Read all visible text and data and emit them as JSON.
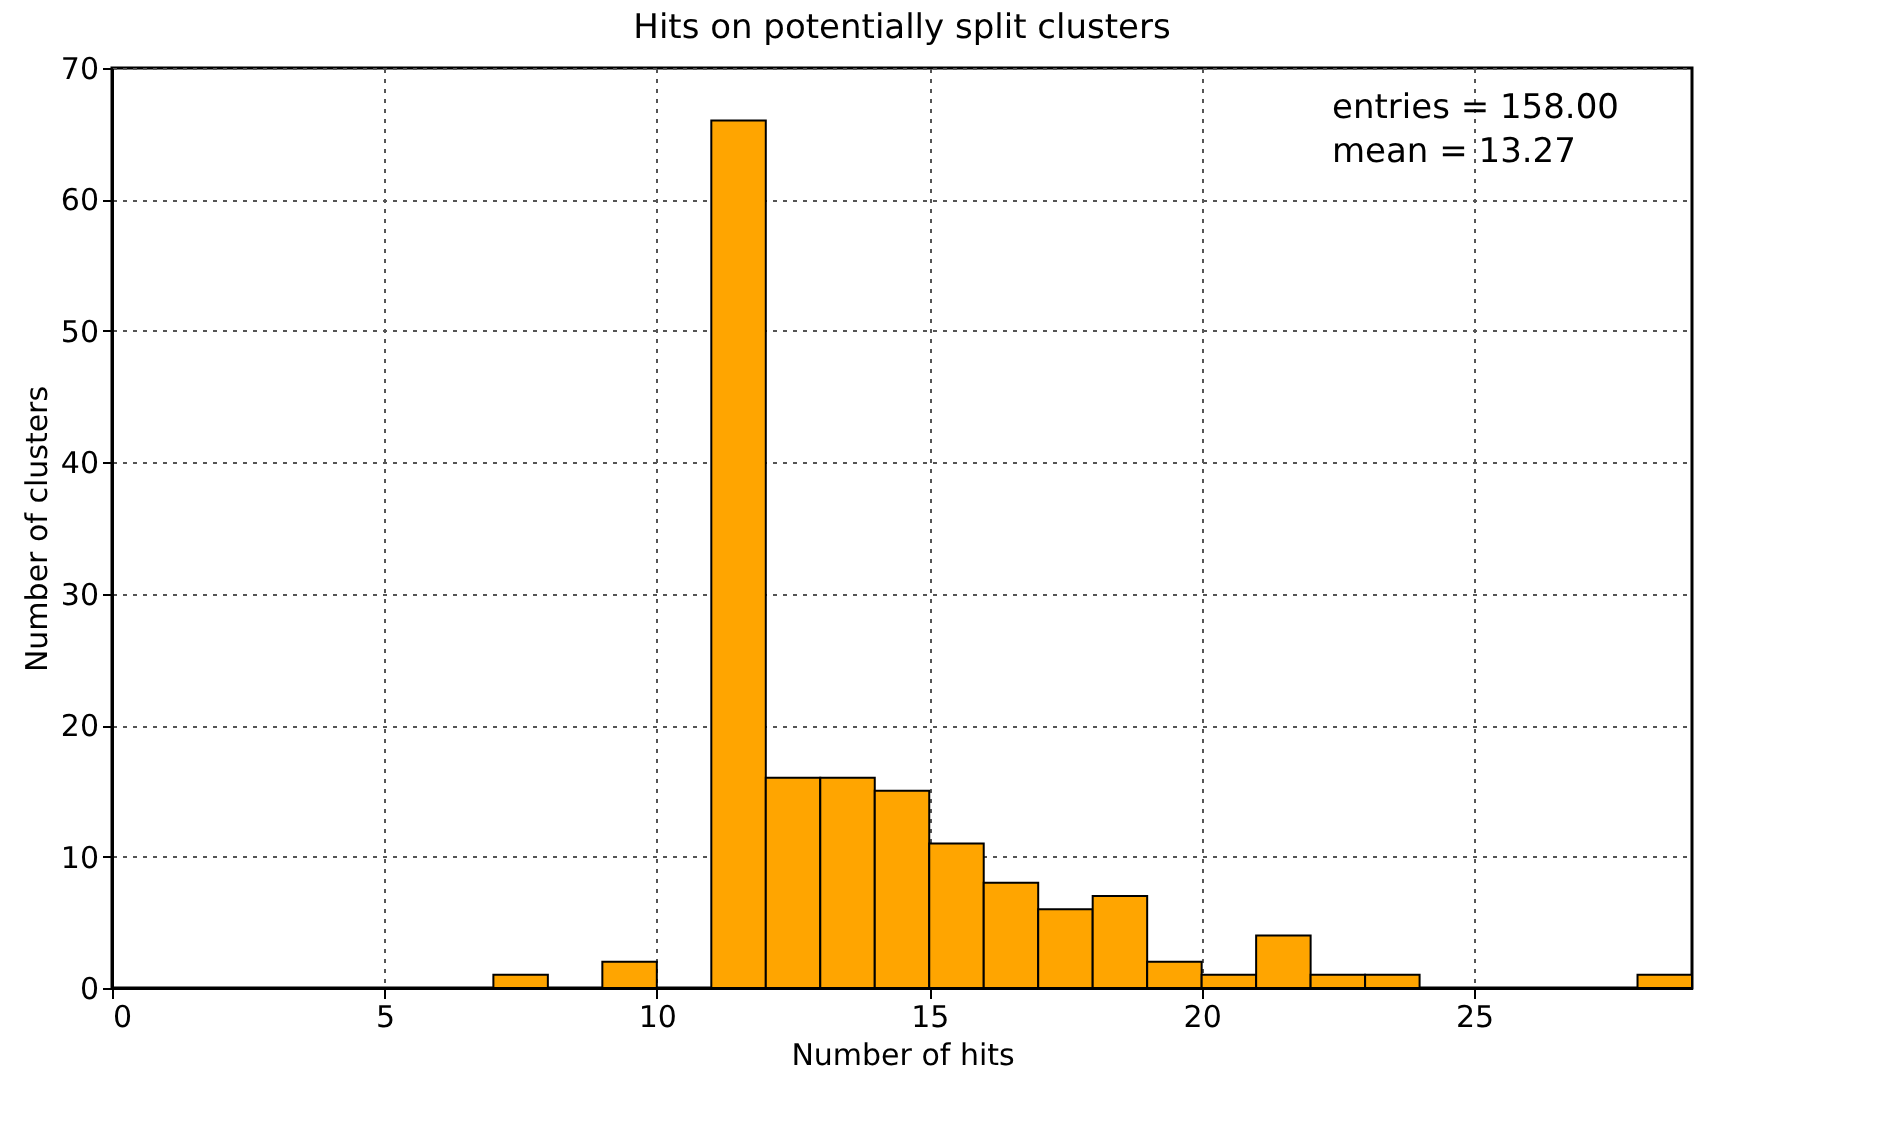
{
  "chart_data": {
    "type": "histogram",
    "title": "Hits on potentially split clusters",
    "xlabel": "Number of hits",
    "ylabel": "Number of clusters",
    "bins": [
      7,
      8,
      9,
      10,
      11,
      12,
      13,
      14,
      15,
      16,
      17,
      18,
      19,
      20,
      21,
      22,
      23,
      24,
      25,
      26,
      27,
      28,
      29
    ],
    "values": [
      1,
      0,
      2,
      0,
      66,
      16,
      16,
      15,
      11,
      8,
      6,
      7,
      2,
      1,
      4,
      1,
      1,
      0,
      0,
      0,
      0,
      1
    ],
    "color": "#ffa500",
    "xlim": [
      0,
      29
    ],
    "xticks": [
      0,
      5,
      10,
      15,
      20,
      25
    ],
    "ylim": [
      0,
      70
    ],
    "yticks": [
      0,
      10,
      20,
      30,
      40,
      50,
      60,
      70
    ],
    "grid": true,
    "annotations": [
      "entries = 158.00",
      " mean = 13.27"
    ]
  }
}
